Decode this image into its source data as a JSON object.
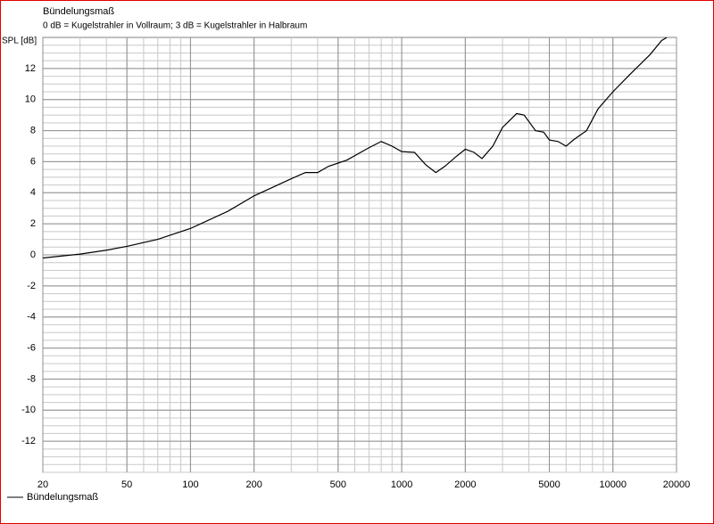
{
  "chart_data": {
    "type": "line",
    "title": "Bündelungsmaß",
    "subtitle": "0 dB = Kugelstrahler in Vollraum; 3 dB = Kugelstrahler in Halbraum",
    "y_label": "SPL [dB]",
    "log_x": true,
    "grid": true,
    "xlim": [
      20,
      20000
    ],
    "xticks": [
      20,
      50,
      100,
      200,
      500,
      1000,
      2000,
      5000,
      10000,
      20000
    ],
    "ylim": [
      -14,
      14
    ],
    "yticks": [
      -12,
      -10,
      -8,
      -6,
      -4,
      -2,
      0,
      2,
      4,
      6,
      8,
      10,
      12
    ],
    "x": [
      20,
      30,
      40,
      50,
      70,
      100,
      150,
      200,
      300,
      350,
      400,
      450,
      550,
      700,
      800,
      900,
      1000,
      1150,
      1300,
      1450,
      1600,
      1800,
      2000,
      2200,
      2400,
      2700,
      3000,
      3500,
      3800,
      4300,
      4700,
      5000,
      5500,
      6000,
      6500,
      7500,
      8500,
      10000,
      12000,
      15000,
      17000,
      18000
    ],
    "series": [
      {
        "name": "Bündelungsmaß",
        "color": "#000000",
        "values": [
          -0.2,
          0.05,
          0.3,
          0.55,
          1.0,
          1.7,
          2.8,
          3.8,
          4.9,
          5.3,
          5.3,
          5.7,
          6.1,
          6.9,
          7.3,
          7.0,
          6.65,
          6.6,
          5.8,
          5.3,
          5.7,
          6.3,
          6.8,
          6.6,
          6.2,
          7.0,
          8.2,
          9.1,
          9.0,
          8.0,
          7.9,
          7.4,
          7.3,
          7.0,
          7.4,
          8.0,
          9.4,
          10.5,
          11.6,
          12.9,
          13.8,
          14
        ]
      }
    ]
  }
}
